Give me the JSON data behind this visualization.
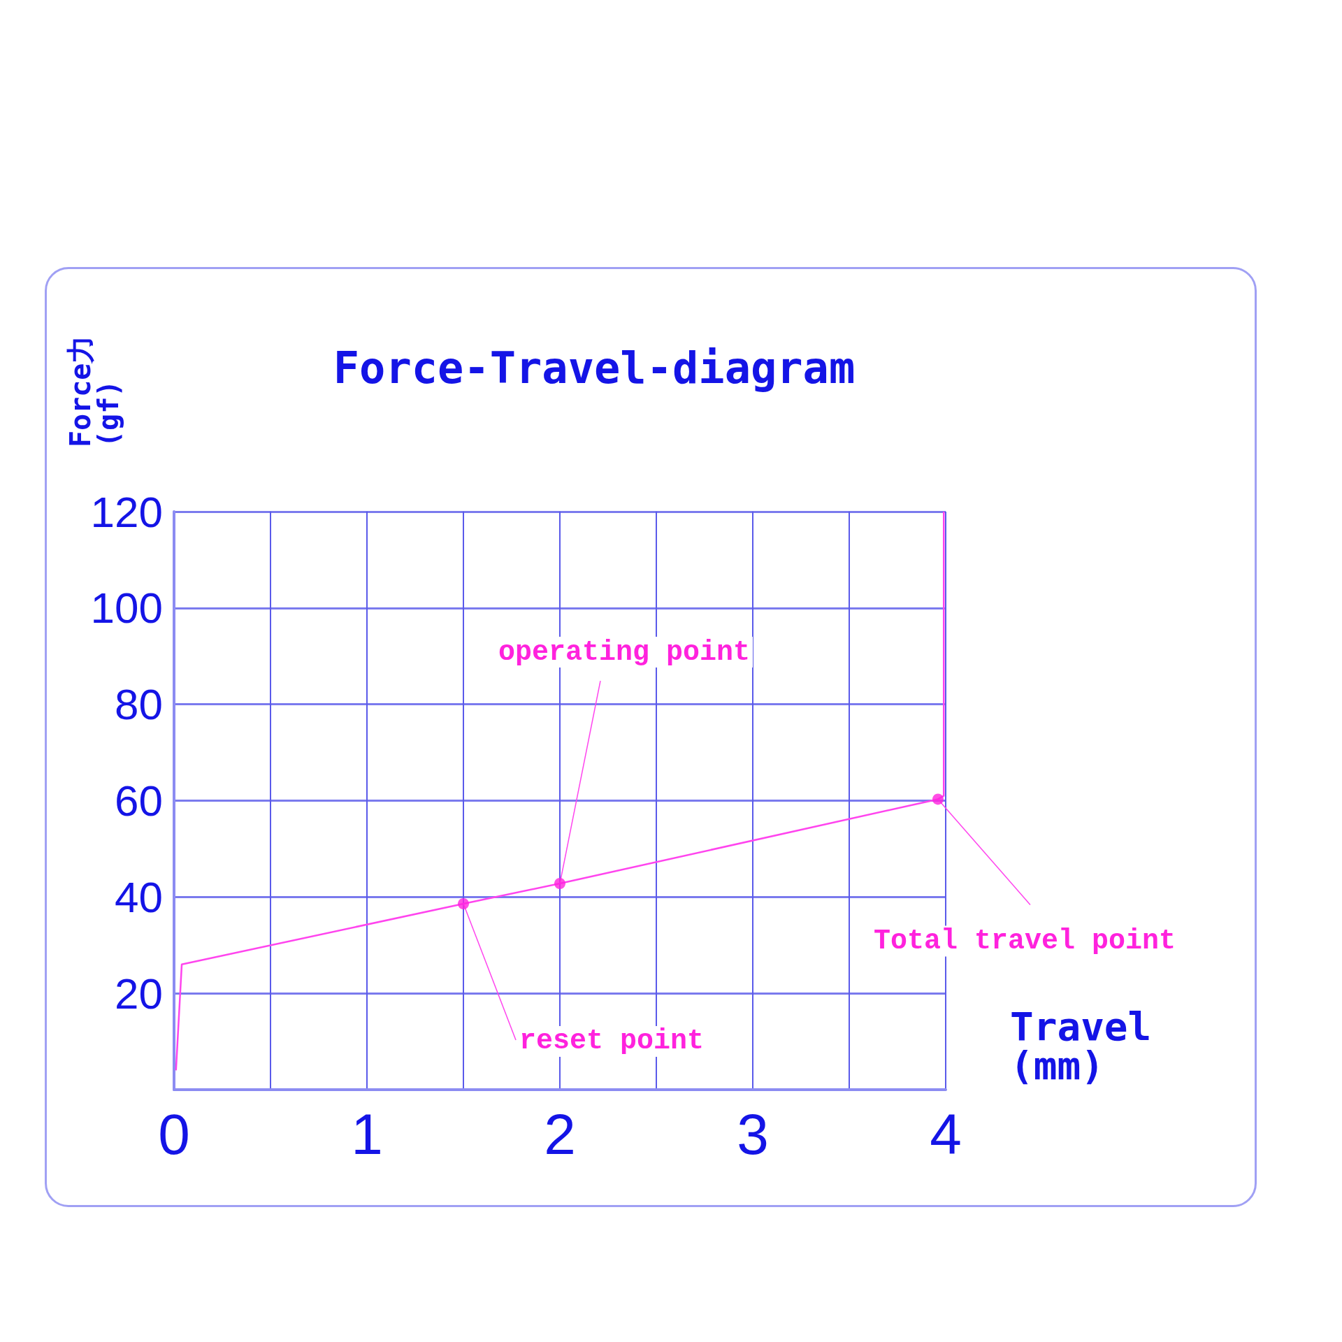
{
  "chart_data": {
    "type": "line",
    "title": "Force-Travel-diagram",
    "xlabel": "Travel (mm)",
    "ylabel": "Force力 (gf)",
    "xlim": [
      0,
      4
    ],
    "ylim": [
      0,
      120
    ],
    "xticks": [
      0,
      {
        "value": 0.5,
        "label": null
      },
      1,
      {
        "value": 1.5,
        "label": null
      },
      2,
      {
        "value": 2.5,
        "label": null
      },
      3,
      {
        "value": 3.5,
        "label": null
      },
      4
    ],
    "yticks": [
      {
        "value": 0,
        "label": null
      },
      20,
      40,
      60,
      80,
      100,
      120
    ],
    "grid": true,
    "series": [
      {
        "color": "#ff44ee",
        "marker": "none",
        "x": [
          0.01,
          0.04,
          1.5,
          2,
          3.96,
          3.99,
          3.99
        ],
        "values": [
          4,
          26,
          38.6,
          42.8,
          60.3,
          61,
          120
        ]
      },
      {
        "type": "scatter",
        "color": "#ff22dd",
        "marker": "circle",
        "x": [
          1.5,
          2,
          3.96
        ],
        "values": [
          38.6,
          42.8,
          60.3
        ]
      }
    ],
    "annotations": [
      {
        "text": "operating point",
        "x": 2,
        "y": 42.8
      },
      {
        "text": "reset point",
        "x": 1.5,
        "y": 38.6
      },
      {
        "text": "Total travel point",
        "x": 3.96,
        "y": 60.3
      }
    ]
  }
}
